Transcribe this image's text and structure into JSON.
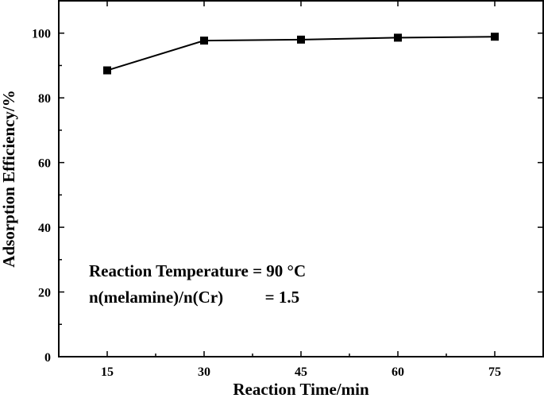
{
  "chart_data": {
    "type": "line",
    "xlabel": "Reaction Time/min",
    "ylabel": "Adsorption Efficiency/%",
    "x": [
      15,
      30,
      45,
      60,
      75
    ],
    "series": [
      {
        "values": [
          88.5,
          97.7,
          98.0,
          98.6,
          98.9
        ]
      }
    ],
    "xlim": [
      7.5,
      82.5
    ],
    "ylim": [
      0,
      110
    ],
    "xticks": [
      "15",
      "30",
      "45",
      "60",
      "75"
    ],
    "yticks": [
      "0",
      "20",
      "40",
      "60",
      "80",
      "100"
    ],
    "grid": false,
    "marker": "square",
    "color": "#000000",
    "annotations": [
      "Reaction Temperature  = 90 °C",
      "n(melamine)/n(Cr)          = 1.5"
    ]
  }
}
